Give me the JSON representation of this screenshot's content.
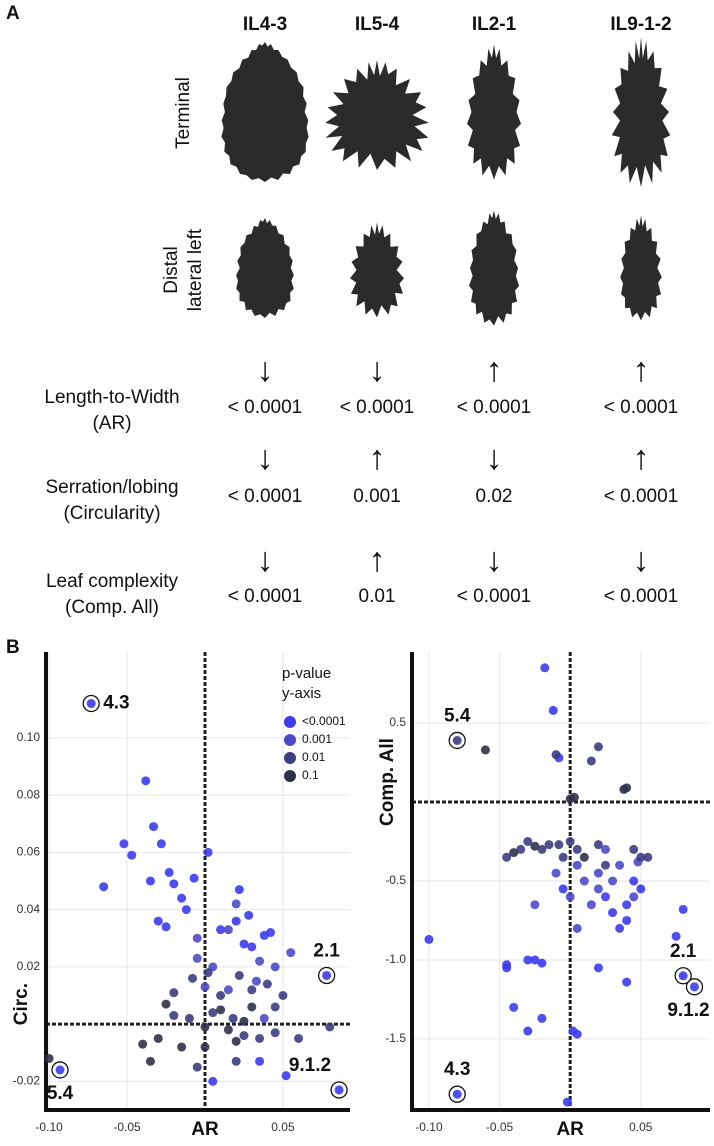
{
  "panel_a": {
    "label": "A",
    "columns": [
      "IL4-3",
      "IL5-4",
      "IL2-1",
      "IL9-1-2"
    ],
    "row_labels": [
      [
        "Terminal"
      ],
      [
        "Distal",
        "lateral left"
      ]
    ],
    "traits": [
      {
        "name": [
          "Length-to-Width",
          "(AR)"
        ],
        "arrows": [
          "↓",
          "↓",
          "↑",
          "↑"
        ],
        "p_values": [
          "< 0.0001",
          "< 0.0001",
          "< 0.0001",
          "< 0.0001"
        ]
      },
      {
        "name": [
          "Serration/lobing",
          "(Circularity)"
        ],
        "arrows": [
          "↓",
          "↑",
          "↓",
          "↑"
        ],
        "p_values": [
          "< 0.0001",
          "0.001",
          "0.02",
          "< 0.0001"
        ]
      },
      {
        "name": [
          "Leaf complexity",
          "(Comp. All)"
        ],
        "arrows": [
          "↓",
          "↑",
          "↓",
          "↓"
        ],
        "p_values": [
          "< 0.0001",
          "0.01",
          "< 0.0001",
          "< 0.0001"
        ]
      }
    ]
  },
  "panel_b_label": "B",
  "chart_data": [
    {
      "type": "scatter",
      "x_label": "AR",
      "y_label": "Circ.",
      "legend_title": [
        "p-value",
        "y-axis"
      ],
      "legend": "upper right",
      "xlim": [
        -0.102,
        0.093
      ],
      "ylim": [
        -0.03,
        0.13
      ],
      "xticks": [
        {
          "value": -0.1,
          "label": "-0.10"
        },
        -0.05,
        0.05
      ],
      "yticks": [
        {
          "value": 0.1,
          "label": "0.10"
        },
        0.08,
        0.06,
        0.04,
        0.02,
        -0.02
      ],
      "grid": true,
      "series": [
        {
          "name": "<0.0001",
          "color": "#3c3cf0",
          "x": [
            -0.073,
            -0.065,
            -0.052,
            -0.047,
            -0.038,
            -0.035,
            -0.033,
            -0.028,
            -0.03,
            -0.025,
            -0.023,
            -0.02,
            -0.015,
            -0.012,
            -0.007,
            0.002,
            0.01,
            0.022,
            0.02,
            0.025,
            0.028,
            0.03,
            0.038,
            0.042,
            0.052,
            0.005,
            0.078,
            0.086,
            -0.093,
            0.035
          ],
          "values": [
            0.112,
            0.048,
            0.063,
            0.059,
            0.085,
            0.05,
            0.069,
            0.063,
            0.036,
            0.034,
            0.053,
            0.049,
            0.044,
            0.04,
            0.051,
            0.06,
            0.033,
            0.047,
            0.036,
            0.028,
            0.038,
            0.027,
            0.031,
            0.032,
            -0.018,
            -0.02,
            0.017,
            -0.023,
            -0.016,
            -0.013
          ]
        },
        {
          "name": "0.001",
          "color": "#4b4bc8",
          "x": [
            0.015,
            0.02,
            0.035,
            0.045,
            0.033,
            0.055,
            -0.005,
            0.005,
            0.0,
            -0.005,
            0.015,
            0.038
          ],
          "values": [
            0.033,
            0.042,
            0.022,
            0.02,
            0.015,
            0.025,
            0.03,
            0.02,
            0.013,
            0.023,
            0.012,
            0.002
          ]
        },
        {
          "name": "0.01",
          "color": "#3d3d82",
          "x": [
            -0.008,
            0.002,
            0.01,
            0.022,
            0.03,
            0.04,
            0.045,
            0.05,
            -0.02,
            -0.01,
            0.005,
            0.018,
            0.025,
            0.035,
            0.045,
            0.06,
            -0.02,
            0.08,
            -0.005,
            0.02
          ],
          "values": [
            0.016,
            0.018,
            0.01,
            0.017,
            0.012,
            0.014,
            0.006,
            0.01,
            0.003,
            0.002,
            0.004,
            0.002,
            -0.004,
            -0.005,
            -0.003,
            -0.005,
            0.011,
            -0.001,
            -0.015,
            -0.013
          ]
        },
        {
          "name": "0.1",
          "color": "#30304a",
          "x": [
            -0.1,
            -0.04,
            -0.03,
            -0.015,
            0.0,
            0.0,
            0.015,
            0.02,
            0.025,
            0.01,
            0.03,
            -0.035,
            -0.025
          ],
          "values": [
            -0.012,
            -0.007,
            -0.005,
            -0.008,
            -0.001,
            -0.008,
            -0.002,
            -0.006,
            0.001,
            0.005,
            0.006,
            -0.013,
            0.007
          ]
        }
      ],
      "annotations": [
        {
          "text": "4.3",
          "x": -0.073,
          "y": 0.112
        },
        {
          "text": "5.4",
          "x": -0.093,
          "y": -0.016
        },
        {
          "text": "2.1",
          "x": 0.078,
          "y": 0.017
        },
        {
          "text": "9.1.2",
          "x": 0.086,
          "y": -0.023
        }
      ]
    },
    {
      "type": "scatter",
      "x_label": "AR",
      "y_label": "Comp. All",
      "xlim": [
        -0.112,
        0.099
      ],
      "ylim": [
        -1.95,
        0.95
      ],
      "xticks": [
        {
          "value": -0.1,
          "label": "-0.10"
        },
        -0.05,
        0.05
      ],
      "yticks": [
        0.5,
        -0.5,
        {
          "value": -1,
          "label": "-1.0"
        },
        -1.5
      ],
      "grid": true,
      "series": [
        {
          "name": "<0.0001",
          "color": "#3c3cf0",
          "x": [
            -0.08,
            -0.018,
            -0.012,
            -0.008,
            -0.1,
            -0.045,
            -0.045,
            -0.03,
            -0.025,
            -0.02,
            -0.04,
            -0.03,
            -0.02,
            0.002,
            -0.002,
            0.005,
            0.02,
            0.08,
            0.088,
            0.08,
            0.075,
            0.025,
            0.03,
            0.04,
            0.045,
            0.05,
            0.035,
            0.04,
            0.04,
            -0.005
          ],
          "values": [
            -1.85,
            0.85,
            0.58,
            0.28,
            -0.87,
            -1.03,
            -1.05,
            -1.0,
            -1.0,
            -1.02,
            -1.3,
            -1.45,
            -1.37,
            -1.45,
            -1.9,
            -1.47,
            -1.05,
            -1.1,
            -1.17,
            -0.68,
            -0.85,
            -0.6,
            -0.7,
            -0.65,
            -0.5,
            -0.55,
            -0.8,
            -0.75,
            -1.14,
            -0.55
          ]
        },
        {
          "name": "0.001",
          "color": "#4b4bc8",
          "x": [
            -0.025,
            -0.01,
            0.005,
            0.01,
            0.02,
            0.025,
            0.02,
            0.045,
            0.048,
            0.035,
            0.005,
            0.0,
            0.015,
            0.03
          ],
          "values": [
            -0.65,
            -0.45,
            -0.4,
            -0.5,
            -0.55,
            -0.3,
            -0.45,
            -0.6,
            -0.38,
            -0.4,
            -0.8,
            -0.6,
            -0.65,
            -0.5
          ]
        },
        {
          "name": "0.01",
          "color": "#3d3d82",
          "x": [
            -0.08,
            -0.045,
            -0.035,
            -0.03,
            -0.02,
            -0.015,
            -0.008,
            0.0,
            0.005,
            0.02,
            0.025,
            0.045,
            0.05,
            0.055,
            0.015,
            0.02,
            -0.01,
            -0.005
          ],
          "values": [
            0.39,
            -0.35,
            -0.3,
            -0.25,
            -0.3,
            -0.27,
            -0.27,
            -0.25,
            -0.3,
            -0.27,
            -0.4,
            -0.3,
            -0.35,
            -0.35,
            0.26,
            0.35,
            0.3,
            -0.35
          ]
        },
        {
          "name": "0.1",
          "color": "#30304a",
          "x": [
            -0.06,
            0.0,
            0.003,
            0.038,
            0.04,
            -0.04,
            -0.025,
            0.01
          ],
          "values": [
            0.33,
            0.02,
            0.03,
            0.08,
            0.09,
            -0.32,
            -0.28,
            -0.35
          ]
        }
      ],
      "annotations": [
        {
          "text": "5.4",
          "x": -0.08,
          "y": 0.39
        },
        {
          "text": "4.3",
          "x": -0.08,
          "y": -1.85
        },
        {
          "text": "2.1",
          "x": 0.08,
          "y": -1.1
        },
        {
          "text": "9.1.2",
          "x": 0.088,
          "y": -1.17
        }
      ]
    }
  ]
}
